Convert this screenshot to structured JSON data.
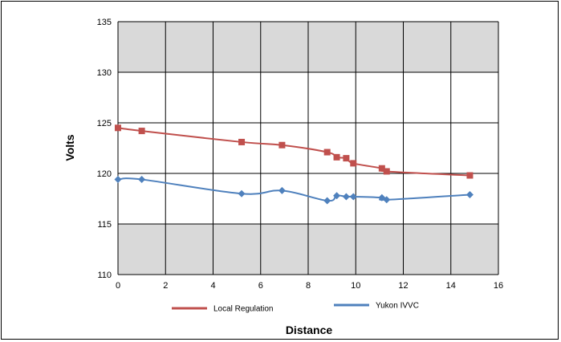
{
  "chart_data": {
    "type": "line",
    "title": "",
    "xlabel": "Distance",
    "ylabel": "Volts",
    "xlim": [
      0,
      16
    ],
    "ylim": [
      110,
      135
    ],
    "xticks": [
      0,
      2,
      4,
      6,
      8,
      10,
      12,
      14,
      16
    ],
    "yticks": [
      110,
      115,
      120,
      125,
      130,
      135
    ],
    "grid": true,
    "shaded_bands": [
      [
        110,
        115
      ],
      [
        130,
        135
      ]
    ],
    "band_color": "#d9d9d9",
    "legend_position": "bottom",
    "series": [
      {
        "name": "Local Regulation",
        "color": "#c0504d",
        "marker": "square",
        "x": [
          0,
          1,
          5.2,
          6.9,
          8.8,
          9.2,
          9.6,
          9.9,
          11.1,
          11.3,
          14.8
        ],
        "y": [
          124.5,
          124.2,
          123.1,
          122.8,
          122.1,
          121.6,
          121.5,
          121.0,
          120.5,
          120.2,
          119.8
        ]
      },
      {
        "name": "Yukon IVVC",
        "color": "#4f81bd",
        "marker": "diamond",
        "x": [
          0,
          1,
          5.2,
          6.9,
          8.8,
          9.2,
          9.6,
          9.9,
          11.1,
          11.3,
          14.8
        ],
        "y": [
          119.4,
          119.4,
          118.0,
          118.3,
          117.3,
          117.8,
          117.7,
          117.7,
          117.6,
          117.4,
          117.9
        ]
      }
    ]
  }
}
